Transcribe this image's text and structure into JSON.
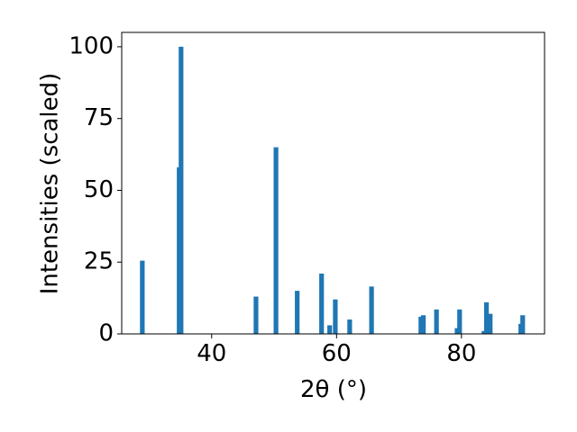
{
  "chart_data": {
    "type": "bar",
    "xlabel": "2θ (°)",
    "ylabel": "Intensities (scaled)",
    "x": [
      28.9,
      34.8,
      35.1,
      47.1,
      50.3,
      53.7,
      57.6,
      58.9,
      59.8,
      62.1,
      65.6,
      73.5,
      73.9,
      76.0,
      79.3,
      79.7,
      83.6,
      84.0,
      84.6,
      89.5,
      89.8
    ],
    "values": [
      25.5,
      58,
      100,
      13,
      65,
      15,
      21,
      3,
      12,
      5,
      16.5,
      6,
      6.5,
      8.5,
      2,
      8.5,
      1,
      11,
      7,
      3.5,
      6.5
    ],
    "color": "#1f77b4",
    "xlim": [
      25.6,
      93.3
    ],
    "xticks": [
      40,
      60,
      80
    ],
    "ylim": [
      0,
      105
    ],
    "yticks": [
      0,
      25,
      50,
      75,
      100
    ]
  }
}
